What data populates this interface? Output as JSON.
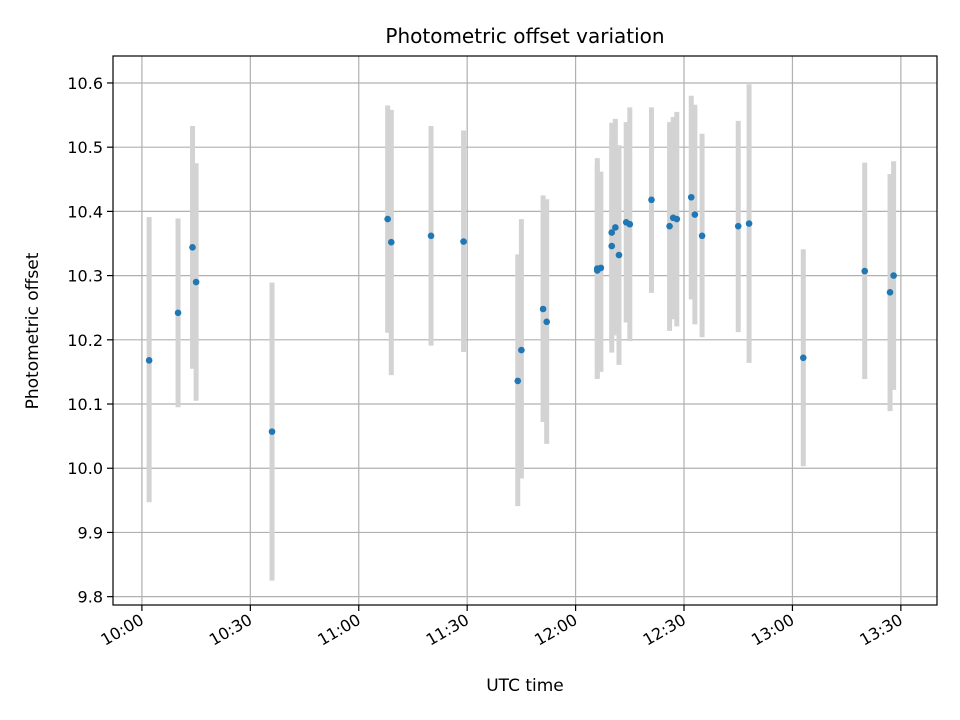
{
  "chart_data": {
    "type": "scatter",
    "title": "Photometric offset variation",
    "xlabel": "UTC time",
    "ylabel": "Photometric offset",
    "x_ticks": [
      "10:00",
      "10:30",
      "11:00",
      "11:30",
      "12:00",
      "12:30",
      "13:00",
      "13:30"
    ],
    "y_ticks": [
      "9.8",
      "9.9",
      "10.0",
      "10.1",
      "10.2",
      "10.3",
      "10.4",
      "10.5",
      "10.6"
    ],
    "xlim": [
      "09:52",
      "13:40"
    ],
    "ylim": [
      9.787,
      10.642
    ],
    "grid": true,
    "colors": {
      "marker": "#1f77b4",
      "errorbar": "#d3d3d3",
      "grid": "#b0b0b0"
    },
    "series": [
      {
        "points": [
          {
            "x": "10:02",
            "y": 10.168,
            "ylow": 9.947,
            "yhigh": 10.391
          },
          {
            "x": "10:10",
            "y": 10.242,
            "ylow": 10.095,
            "yhigh": 10.389
          },
          {
            "x": "10:14",
            "y": 10.344,
            "ylow": 10.155,
            "yhigh": 10.533
          },
          {
            "x": "10:15",
            "y": 10.29,
            "ylow": 10.105,
            "yhigh": 10.475
          },
          {
            "x": "10:36",
            "y": 10.057,
            "ylow": 9.825,
            "yhigh": 10.289
          },
          {
            "x": "11:08",
            "y": 10.388,
            "ylow": 10.211,
            "yhigh": 10.565
          },
          {
            "x": "11:09",
            "y": 10.352,
            "ylow": 10.145,
            "yhigh": 10.558
          },
          {
            "x": "11:20",
            "y": 10.362,
            "ylow": 10.191,
            "yhigh": 10.533
          },
          {
            "x": "11:29",
            "y": 10.353,
            "ylow": 10.181,
            "yhigh": 10.526
          },
          {
            "x": "11:44",
            "y": 10.136,
            "ylow": 9.941,
            "yhigh": 10.333
          },
          {
            "x": "11:45",
            "y": 10.184,
            "ylow": 9.984,
            "yhigh": 10.388
          },
          {
            "x": "11:51",
            "y": 10.248,
            "ylow": 10.072,
            "yhigh": 10.425
          },
          {
            "x": "11:52",
            "y": 10.228,
            "ylow": 10.038,
            "yhigh": 10.419
          },
          {
            "x": "12:06",
            "y": 10.311,
            "ylow": 10.139,
            "yhigh": 10.483
          },
          {
            "x": "12:06",
            "y": 10.308,
            "ylow": 10.142,
            "yhigh": 10.473
          },
          {
            "x": "12:07",
            "y": 10.312,
            "ylow": 10.15,
            "yhigh": 10.462
          },
          {
            "x": "12:10",
            "y": 10.367,
            "ylow": 10.197,
            "yhigh": 10.538
          },
          {
            "x": "12:10",
            "y": 10.346,
            "ylow": 10.18,
            "yhigh": 10.512
          },
          {
            "x": "12:11",
            "y": 10.375,
            "ylow": 10.207,
            "yhigh": 10.544
          },
          {
            "x": "12:12",
            "y": 10.332,
            "ylow": 10.161,
            "yhigh": 10.503
          },
          {
            "x": "12:14",
            "y": 10.383,
            "ylow": 10.227,
            "yhigh": 10.539
          },
          {
            "x": "12:15",
            "y": 10.38,
            "ylow": 10.198,
            "yhigh": 10.562
          },
          {
            "x": "12:21",
            "y": 10.418,
            "ylow": 10.273,
            "yhigh": 10.562
          },
          {
            "x": "12:26",
            "y": 10.377,
            "ylow": 10.214,
            "yhigh": 10.539
          },
          {
            "x": "12:27",
            "y": 10.39,
            "ylow": 10.232,
            "yhigh": 10.547
          },
          {
            "x": "12:28",
            "y": 10.388,
            "ylow": 10.221,
            "yhigh": 10.555
          },
          {
            "x": "12:32",
            "y": 10.422,
            "ylow": 10.263,
            "yhigh": 10.58
          },
          {
            "x": "12:33",
            "y": 10.395,
            "ylow": 10.224,
            "yhigh": 10.566
          },
          {
            "x": "12:35",
            "y": 10.362,
            "ylow": 10.204,
            "yhigh": 10.521
          },
          {
            "x": "12:45",
            "y": 10.377,
            "ylow": 10.212,
            "yhigh": 10.541
          },
          {
            "x": "12:48",
            "y": 10.381,
            "ylow": 10.164,
            "yhigh": 10.598
          },
          {
            "x": "13:03",
            "y": 10.172,
            "ylow": 10.003,
            "yhigh": 10.341
          },
          {
            "x": "13:20",
            "y": 10.307,
            "ylow": 10.139,
            "yhigh": 10.476
          },
          {
            "x": "13:27",
            "y": 10.274,
            "ylow": 10.089,
            "yhigh": 10.458
          },
          {
            "x": "13:28",
            "y": 10.3,
            "ylow": 10.122,
            "yhigh": 10.478
          }
        ]
      }
    ]
  }
}
